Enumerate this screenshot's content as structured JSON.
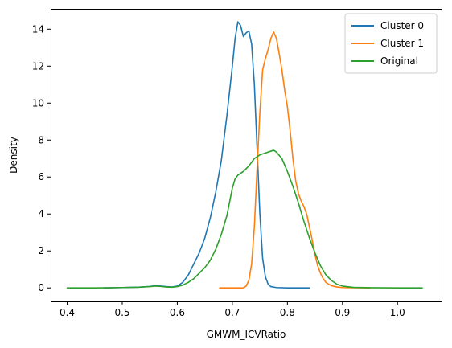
{
  "chart_data": {
    "type": "line",
    "title": "",
    "xlabel": "GMWM_ICVRatio",
    "ylabel": "Density",
    "xlim": [
      0.37,
      1.08
    ],
    "ylim": [
      -0.73,
      15.1
    ],
    "xticks": [
      0.4,
      0.5,
      0.6,
      0.7,
      0.8,
      0.9,
      1.0
    ],
    "xtick_labels": [
      "0.4",
      "0.5",
      "0.6",
      "0.7",
      "0.8",
      "0.9",
      "1.0"
    ],
    "yticks": [
      0,
      2,
      4,
      6,
      8,
      10,
      12,
      14
    ],
    "ytick_labels": [
      "0",
      "2",
      "4",
      "6",
      "8",
      "10",
      "12",
      "14"
    ],
    "grid": false,
    "legend_position": "top-right",
    "series": [
      {
        "name": "Cluster 0",
        "color": "#1f77b4",
        "x": [
          0.467,
          0.5,
          0.53,
          0.55,
          0.56,
          0.57,
          0.58,
          0.59,
          0.6,
          0.61,
          0.62,
          0.63,
          0.64,
          0.65,
          0.66,
          0.67,
          0.68,
          0.69,
          0.7,
          0.705,
          0.71,
          0.715,
          0.72,
          0.725,
          0.73,
          0.735,
          0.74,
          0.745,
          0.75,
          0.755,
          0.76,
          0.765,
          0.77,
          0.78,
          0.8,
          0.84
        ],
        "y": [
          0,
          0.02,
          0.04,
          0.08,
          0.12,
          0.1,
          0.07,
          0.05,
          0.1,
          0.3,
          0.7,
          1.3,
          1.9,
          2.7,
          3.8,
          5.2,
          6.9,
          9.3,
          12.0,
          13.5,
          14.4,
          14.2,
          13.6,
          13.8,
          13.9,
          13.2,
          11.0,
          7.5,
          4.0,
          1.6,
          0.6,
          0.2,
          0.07,
          0.02,
          0.0,
          0.0
        ]
      },
      {
        "name": "Cluster 1",
        "color": "#ff7f0e",
        "x": [
          0.677,
          0.72,
          0.725,
          0.73,
          0.735,
          0.74,
          0.745,
          0.75,
          0.755,
          0.76,
          0.765,
          0.77,
          0.775,
          0.78,
          0.785,
          0.79,
          0.795,
          0.8,
          0.805,
          0.81,
          0.815,
          0.82,
          0.825,
          0.83,
          0.835,
          0.84,
          0.845,
          0.85,
          0.855,
          0.86,
          0.865,
          0.87,
          0.875,
          0.88,
          0.89,
          0.9,
          0.92,
          0.95
        ],
        "y": [
          0,
          0.0,
          0.1,
          0.4,
          1.3,
          3.3,
          6.5,
          9.5,
          11.8,
          12.4,
          12.9,
          13.5,
          13.85,
          13.5,
          12.7,
          11.8,
          10.7,
          9.8,
          8.5,
          7.0,
          5.8,
          5.1,
          4.7,
          4.4,
          4.0,
          3.3,
          2.6,
          1.8,
          1.2,
          0.8,
          0.5,
          0.3,
          0.2,
          0.12,
          0.05,
          0.02,
          0.01,
          0.0
        ]
      },
      {
        "name": "Original",
        "color": "#2ca02c",
        "x": [
          0.4,
          0.45,
          0.5,
          0.53,
          0.55,
          0.56,
          0.57,
          0.58,
          0.59,
          0.6,
          0.61,
          0.62,
          0.63,
          0.64,
          0.65,
          0.66,
          0.67,
          0.68,
          0.69,
          0.7,
          0.705,
          0.71,
          0.72,
          0.73,
          0.74,
          0.75,
          0.76,
          0.77,
          0.775,
          0.78,
          0.79,
          0.8,
          0.81,
          0.82,
          0.83,
          0.84,
          0.85,
          0.86,
          0.87,
          0.88,
          0.89,
          0.9,
          0.92,
          0.95,
          1.0,
          1.045
        ],
        "y": [
          0,
          0.0,
          0.02,
          0.04,
          0.07,
          0.1,
          0.08,
          0.05,
          0.04,
          0.07,
          0.15,
          0.3,
          0.5,
          0.8,
          1.1,
          1.5,
          2.1,
          2.9,
          3.9,
          5.4,
          5.9,
          6.1,
          6.3,
          6.6,
          7.0,
          7.2,
          7.3,
          7.4,
          7.45,
          7.35,
          7.0,
          6.3,
          5.5,
          4.6,
          3.6,
          2.7,
          1.9,
          1.2,
          0.7,
          0.4,
          0.2,
          0.1,
          0.03,
          0.01,
          0.0,
          0.0
        ]
      }
    ]
  }
}
